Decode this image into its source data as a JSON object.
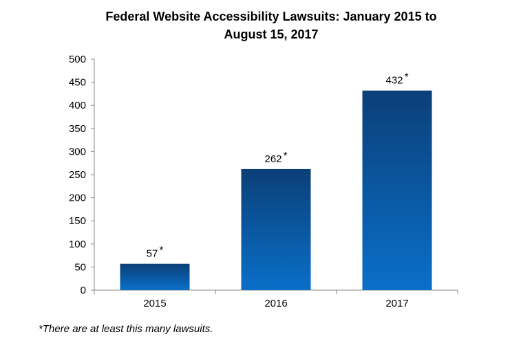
{
  "chart_data": {
    "type": "bar",
    "title_lines": [
      "Federal Website Accessibility Lawsuits: January 2015 to",
      "August 15, 2017"
    ],
    "categories": [
      "2015",
      "2016",
      "2017"
    ],
    "values": [
      57,
      262,
      432
    ],
    "data_labels": [
      "57",
      "262",
      "432"
    ],
    "label_marker": "*",
    "ylim": [
      0,
      500
    ],
    "yticks": [
      0,
      50,
      100,
      150,
      200,
      250,
      300,
      350,
      400,
      450,
      500
    ],
    "xlabel": "",
    "ylabel": "",
    "grid": false,
    "legend": "none",
    "colors": {
      "bar_top": "#0b3f78",
      "bar_bottom": "#0a6fc9",
      "axis": "#888888"
    }
  },
  "footnote": "*There are at least this many lawsuits."
}
